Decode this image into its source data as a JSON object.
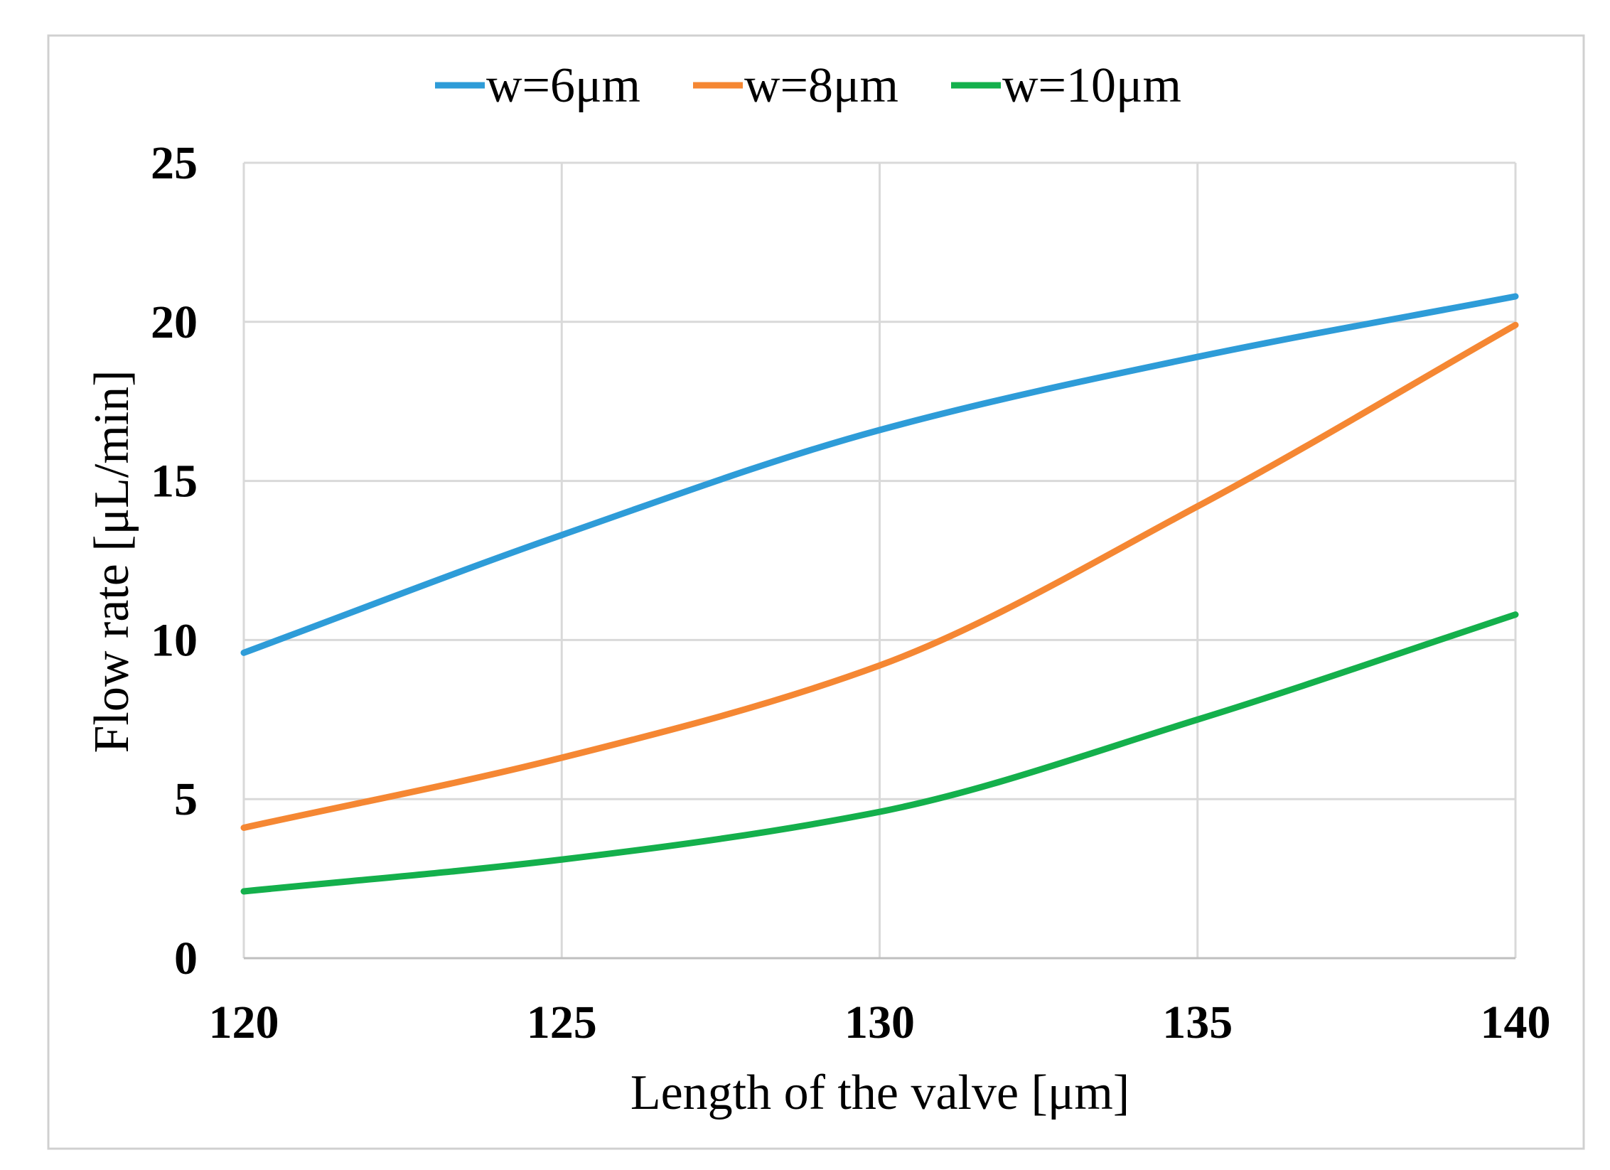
{
  "chart_data": {
    "type": "line",
    "title": "",
    "xlabel": "Length of the valve [μm]",
    "ylabel": "Flow rate [μL/min]",
    "xlim": [
      120,
      140
    ],
    "ylim": [
      0,
      25
    ],
    "x_ticks": [
      120,
      125,
      130,
      135,
      140
    ],
    "y_ticks": [
      0,
      5,
      10,
      15,
      20,
      25
    ],
    "x_tick_labels": [
      "120",
      "125",
      "130",
      "135",
      "140"
    ],
    "y_tick_labels": [
      "0",
      "5",
      "10",
      "15",
      "20",
      "25"
    ],
    "grid": true,
    "legend_position": "top",
    "x": [
      120,
      125,
      130,
      135,
      140
    ],
    "series": [
      {
        "name": "w=6μm",
        "color": "#2E9CD8",
        "values": [
          9.6,
          13.3,
          16.6,
          18.9,
          20.8
        ]
      },
      {
        "name": "w=8μm",
        "color": "#F58733",
        "values": [
          4.1,
          6.3,
          9.2,
          14.2,
          19.9
        ]
      },
      {
        "name": "w=10μm",
        "color": "#14B04C",
        "values": [
          2.1,
          3.1,
          4.6,
          7.5,
          10.8
        ]
      }
    ]
  }
}
